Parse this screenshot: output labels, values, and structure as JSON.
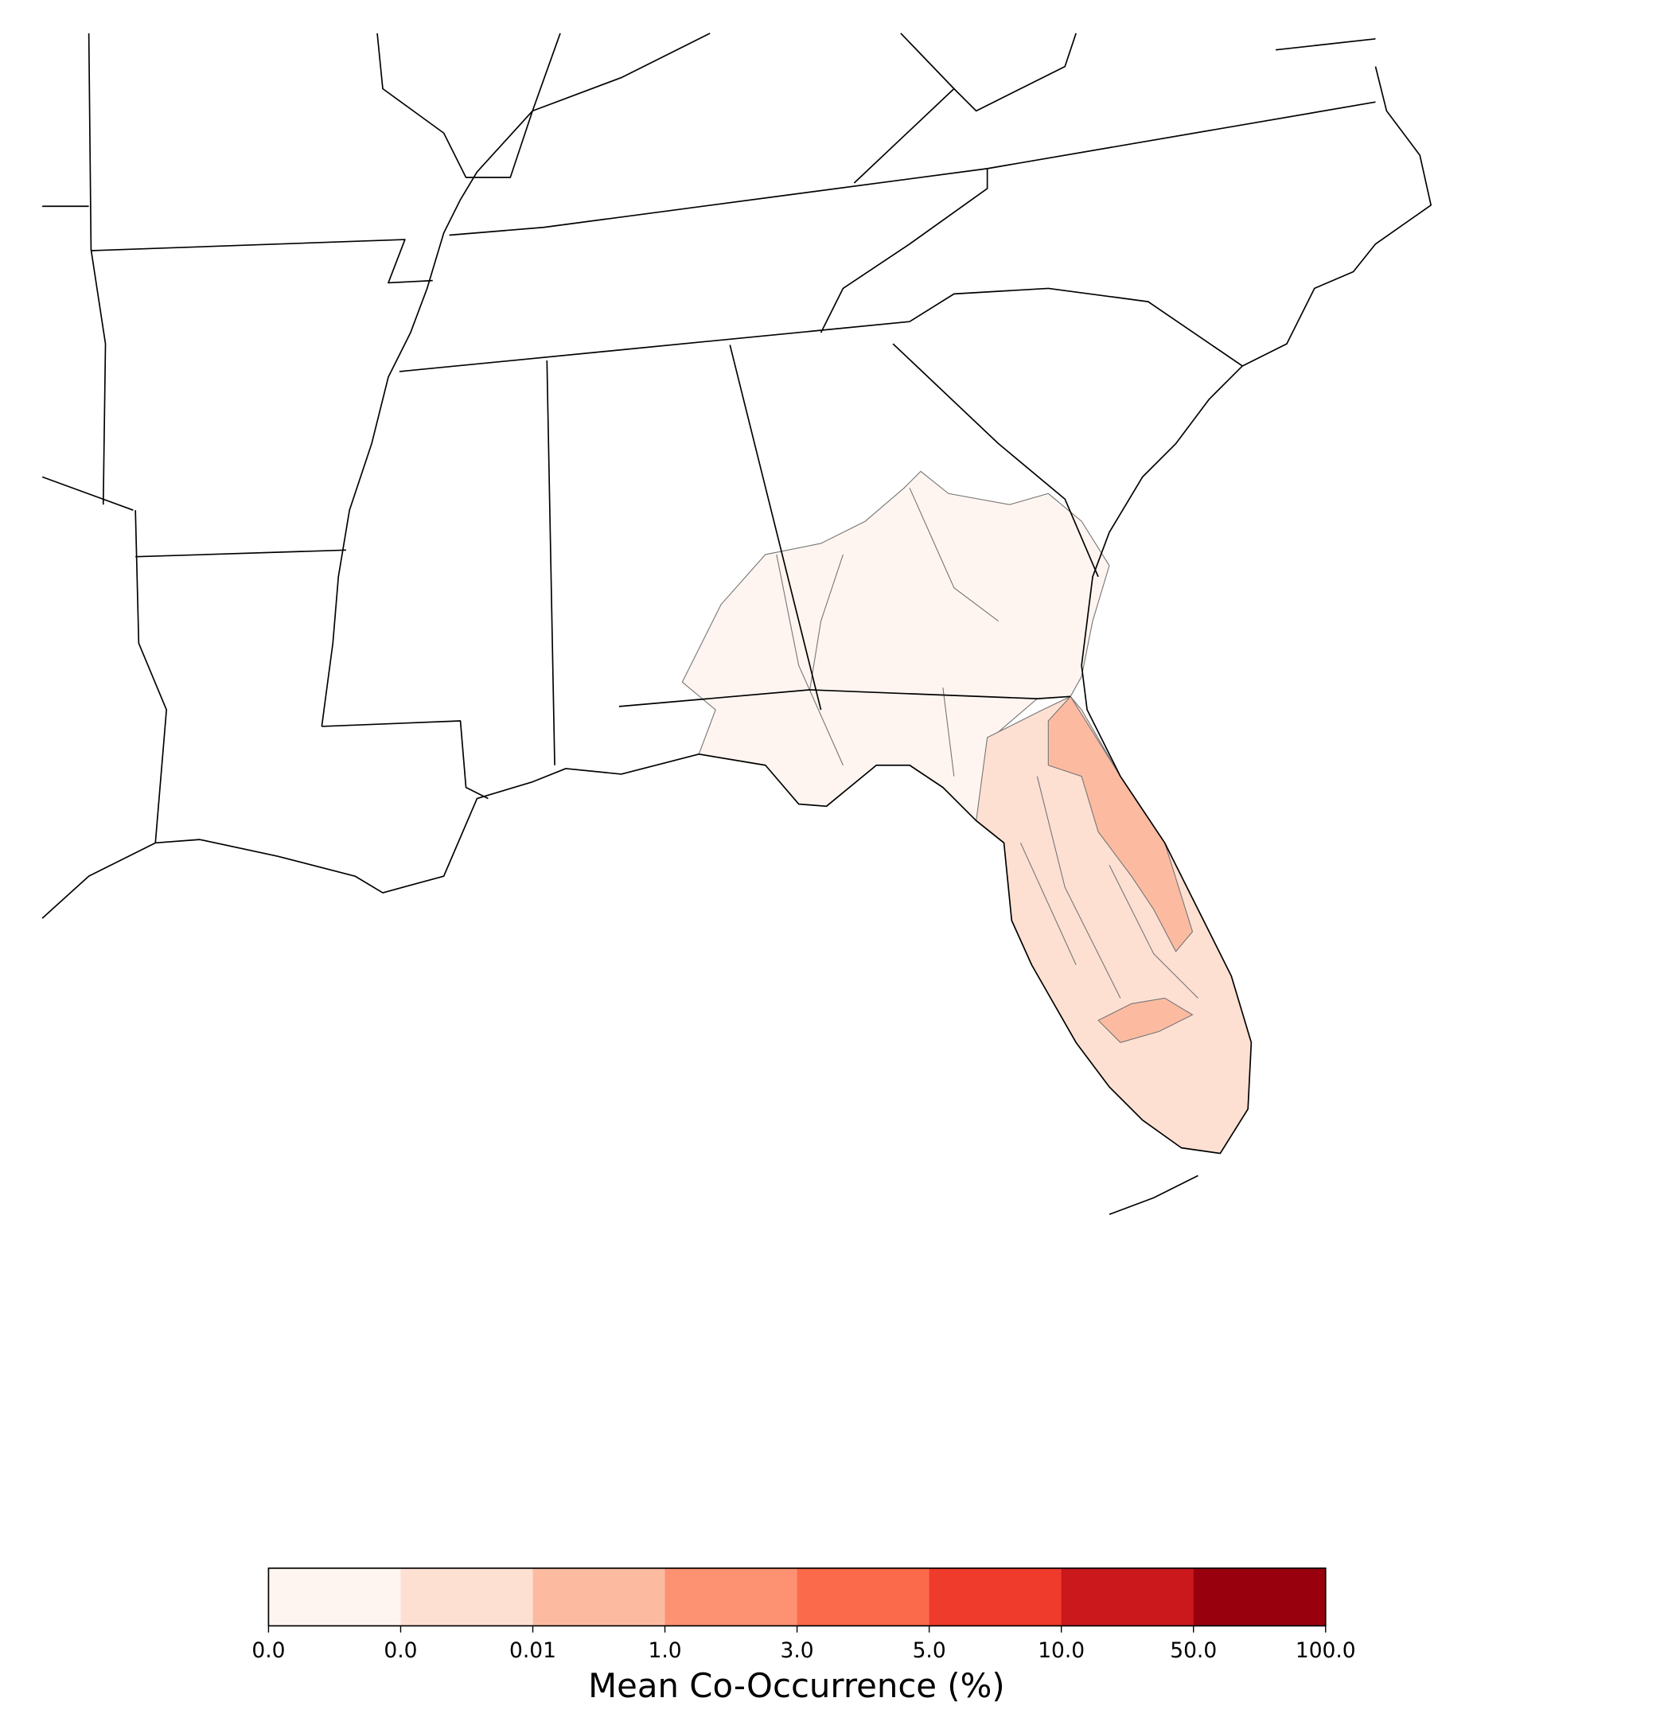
{
  "colorbar": {
    "label": "Mean Co-Occurrence (%)",
    "ticks": [
      {
        "value": 0,
        "label": "0.0"
      },
      {
        "value": 0.001,
        "label": "0.0"
      },
      {
        "value": 0.01,
        "label": "0.01"
      },
      {
        "value": 1,
        "label": "1.0"
      },
      {
        "value": 3,
        "label": "3.0"
      },
      {
        "value": 5,
        "label": "5.0"
      },
      {
        "value": 10,
        "label": "10.0"
      },
      {
        "value": 50,
        "label": "50.0"
      },
      {
        "value": 100,
        "label": "100.0"
      }
    ],
    "colors": [
      "#fff5f0",
      "#fee0d2",
      "#fcbba1",
      "#fc9272",
      "#fb6a4a",
      "#ef3b2c",
      "#cb181d",
      "#99000d"
    ]
  }
}
